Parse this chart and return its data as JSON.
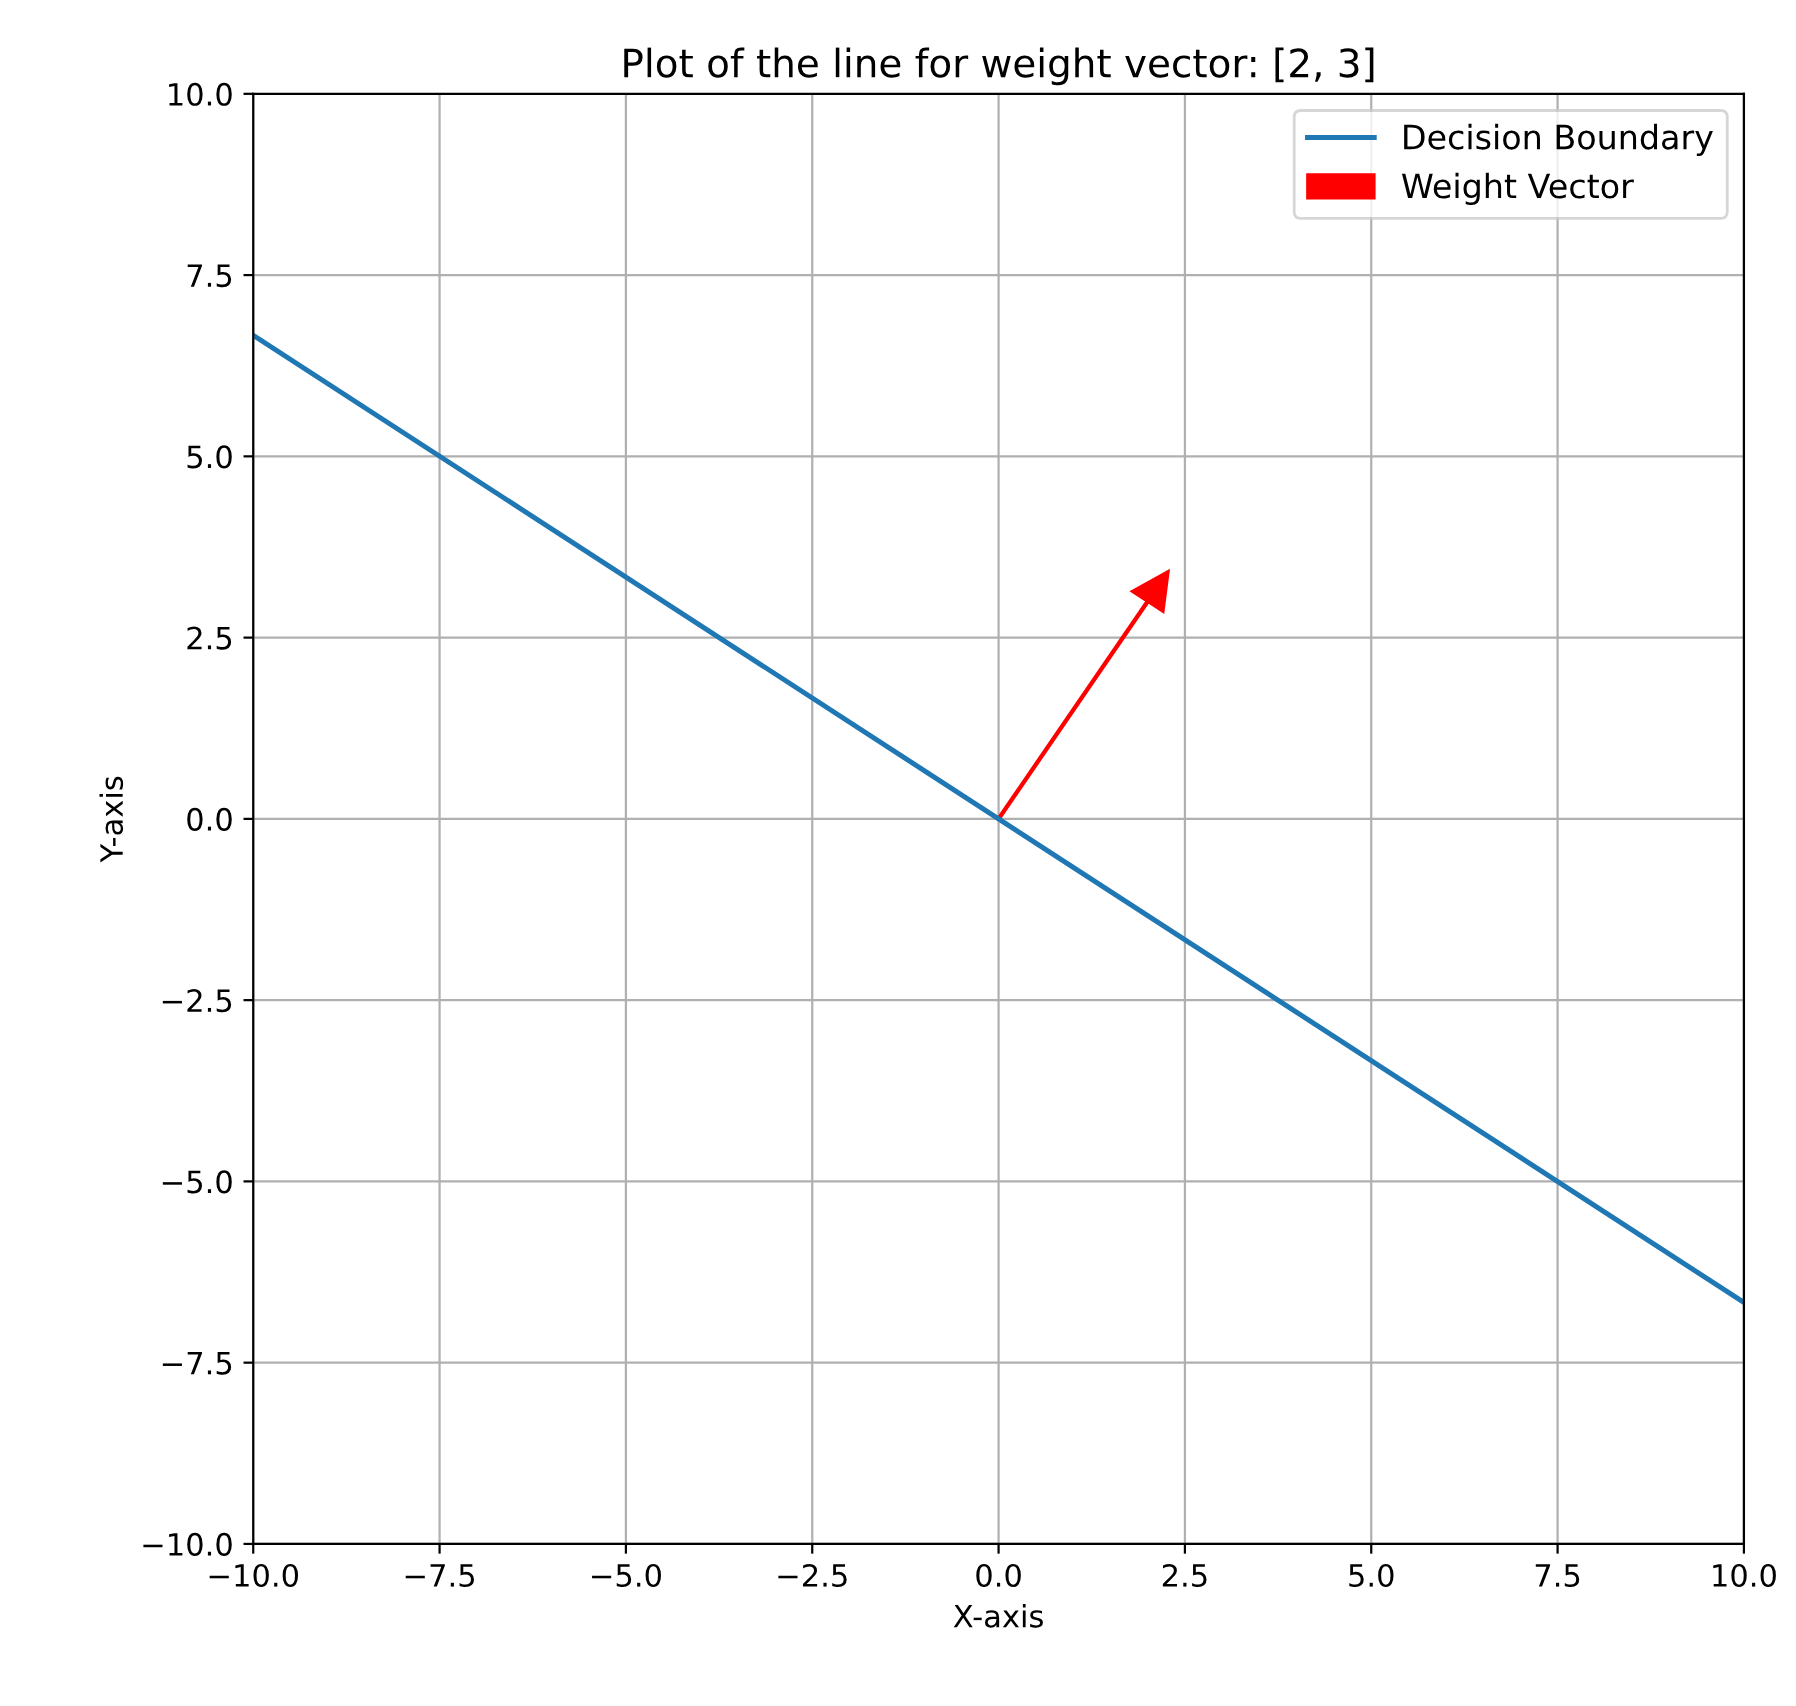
{
  "chart_data": {
    "type": "line",
    "title": "Plot of the line for weight vector: [2, 3]",
    "xlabel": "X-axis",
    "ylabel": "Y-axis",
    "series": [
      {
        "name": "Decision Boundary",
        "type": "line",
        "color": "#1f77b4",
        "x": [
          -10,
          10
        ],
        "values": [
          6.67,
          -6.67
        ]
      },
      {
        "name": "Weight Vector",
        "type": "other",
        "color": "#ff0000"
      }
    ],
    "xlim": [
      -10,
      10
    ],
    "ylim": [
      -10,
      10
    ],
    "xticks": [
      {
        "value": -10,
        "label": "−10.0"
      },
      {
        "value": -7.5,
        "label": "−7.5"
      },
      {
        "value": -5,
        "label": "−5.0"
      },
      {
        "value": -2.5,
        "label": "−2.5"
      },
      {
        "value": 0,
        "label": "0.0"
      },
      {
        "value": 2.5,
        "label": "2.5"
      },
      {
        "value": 5,
        "label": "5.0"
      },
      {
        "value": 7.5,
        "label": "7.5"
      },
      {
        "value": 10,
        "label": "10.0"
      }
    ],
    "yticks": [
      {
        "value": -10,
        "label": "−10.0"
      },
      {
        "value": -7.5,
        "label": "−7.5"
      },
      {
        "value": -5,
        "label": "−5.0"
      },
      {
        "value": -2.5,
        "label": "−2.5"
      },
      {
        "value": 0,
        "label": "0.0"
      },
      {
        "value": 2.5,
        "label": "2.5"
      },
      {
        "value": 5,
        "label": "5.0"
      },
      {
        "value": 7.5,
        "label": "7.5"
      },
      {
        "value": 10,
        "label": "10.0"
      }
    ],
    "grid": true,
    "legend": "top right",
    "marker": "none",
    "line_style": "solid"
  }
}
